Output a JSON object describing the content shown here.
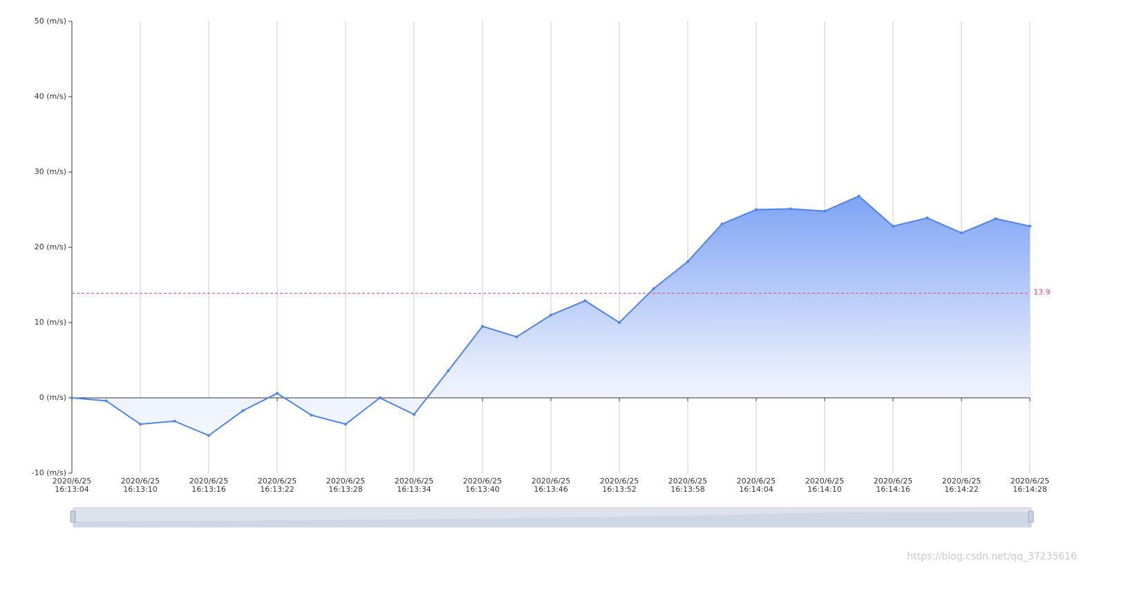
{
  "chart_data": {
    "type": "area",
    "categories": [
      [
        "2020/6/25",
        "16:13:04"
      ],
      null,
      [
        "2020/6/25",
        "16:13:10"
      ],
      null,
      [
        "2020/6/25",
        "16:13:16"
      ],
      null,
      [
        "2020/6/25",
        "16:13:22"
      ],
      null,
      [
        "2020/6/25",
        "16:13:28"
      ],
      null,
      [
        "2020/6/25",
        "16:13:34"
      ],
      null,
      [
        "2020/6/25",
        "16:13:40"
      ],
      null,
      [
        "2020/6/25",
        "16:13:46"
      ],
      null,
      [
        "2020/6/25",
        "16:13:52"
      ],
      null,
      [
        "2020/6/25",
        "16:13:58"
      ],
      null,
      [
        "2020/6/25",
        "16:14:04"
      ],
      null,
      [
        "2020/6/25",
        "16:14:10"
      ],
      null,
      [
        "2020/6/25",
        "16:14:16"
      ],
      null,
      [
        "2020/6/25",
        "16:14:22"
      ],
      null,
      [
        "2020/6/25",
        "16:14:28"
      ]
    ],
    "values": [
      0,
      -0.4,
      -3.5,
      -3.1,
      -5.0,
      -1.7,
      0.6,
      -2.3,
      -3.5,
      0.0,
      -2.2,
      3.6,
      9.5,
      8.1,
      11.0,
      12.9,
      10.0,
      14.5,
      18.1,
      23.1,
      25.0,
      25.1,
      24.8,
      26.8,
      22.8,
      23.9,
      21.9,
      23.8,
      22.8
    ],
    "color": "#4d82f0",
    "ylim": [
      -10,
      50
    ],
    "yticks": [
      {
        "value": -10,
        "label": "-10 (m/s)"
      },
      {
        "value": 0,
        "label": "0 (m/s)"
      },
      {
        "value": 10,
        "label": "10 (m/s)"
      },
      {
        "value": 20,
        "label": "20 (m/s)"
      },
      {
        "value": 30,
        "label": "30 (m/s)"
      },
      {
        "value": 40,
        "label": "40 (m/s)"
      },
      {
        "value": 50,
        "label": "50 (m/s)"
      }
    ],
    "grid": true,
    "mark_line": {
      "value": 13.9,
      "label": "13.9",
      "color": "#ee4266"
    },
    "watermark": "https://blog.csdn.net/qq_37235616"
  }
}
